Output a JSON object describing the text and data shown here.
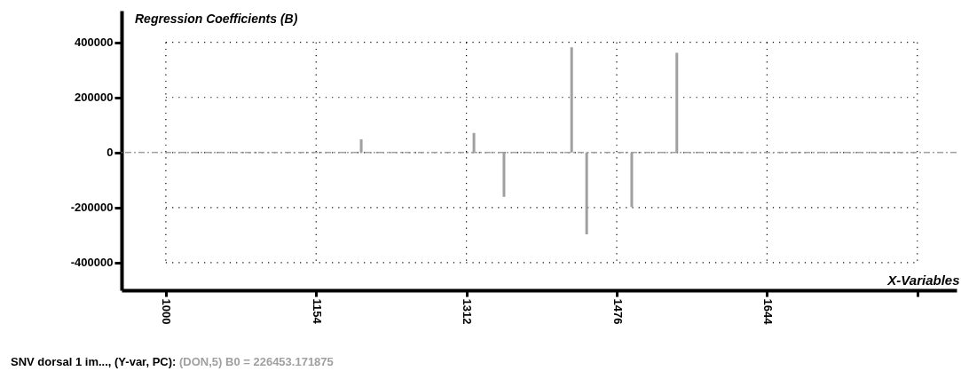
{
  "chart_data": {
    "type": "bar",
    "title": "Regression Coefficients (B)",
    "xlabel": "X-Variables",
    "categories": [
      "1000",
      null,
      null,
      null,
      null,
      null,
      null,
      null,
      null,
      null,
      null,
      null,
      null,
      null,
      null,
      null,
      null,
      null,
      null,
      null,
      "1154",
      null,
      null,
      null,
      null,
      null,
      null,
      null,
      null,
      null,
      null,
      null,
      null,
      null,
      null,
      null,
      null,
      null,
      null,
      null,
      "1312",
      null,
      null,
      null,
      null,
      null,
      null,
      null,
      null,
      null,
      null,
      null,
      null,
      null,
      null,
      null,
      null,
      null,
      null,
      null,
      "1476",
      null,
      null,
      null,
      null,
      null,
      null,
      null,
      null,
      null,
      null,
      null,
      null,
      null,
      null,
      null,
      null,
      null,
      null,
      null,
      "1644",
      null,
      null,
      null,
      null,
      null,
      null,
      null,
      null,
      null,
      null,
      null,
      null,
      null,
      null,
      null,
      null,
      null,
      null,
      null,
      null
    ],
    "values": [
      0,
      0,
      0,
      0,
      0,
      0,
      0,
      0,
      0,
      0,
      0,
      0,
      0,
      0,
      0,
      0,
      0,
      0,
      0,
      0,
      0,
      0,
      0,
      0,
      0,
      0,
      48000,
      0,
      0,
      0,
      0,
      0,
      0,
      0,
      0,
      0,
      0,
      0,
      0,
      0,
      0,
      71000,
      0,
      0,
      0,
      -161000,
      0,
      0,
      0,
      0,
      0,
      0,
      0,
      0,
      382000,
      0,
      -297000,
      0,
      0,
      0,
      0,
      0,
      -198000,
      0,
      0,
      0,
      0,
      0,
      362000,
      0,
      0,
      0,
      0,
      0,
      0,
      0,
      0,
      0,
      0,
      0,
      0,
      0,
      null,
      null,
      null,
      null,
      null,
      null,
      null,
      null,
      null,
      null,
      null,
      null,
      null,
      null,
      null,
      null,
      null,
      null,
      null
    ],
    "color": "#a0a0a0",
    "ylim": [
      -500000,
      515000
    ],
    "yticks": [
      -400000,
      -200000,
      0,
      200000,
      400000
    ],
    "grid": true,
    "ref_lines": [
      {
        "axis": "y",
        "value": 0,
        "color": "#a0a0a0",
        "line_style": "dashed"
      }
    ],
    "annotations": [
      "SNV dorsal 1 im..., (Y-var, PC):",
      "(DON,5) B0 = 226453.171875"
    ]
  }
}
